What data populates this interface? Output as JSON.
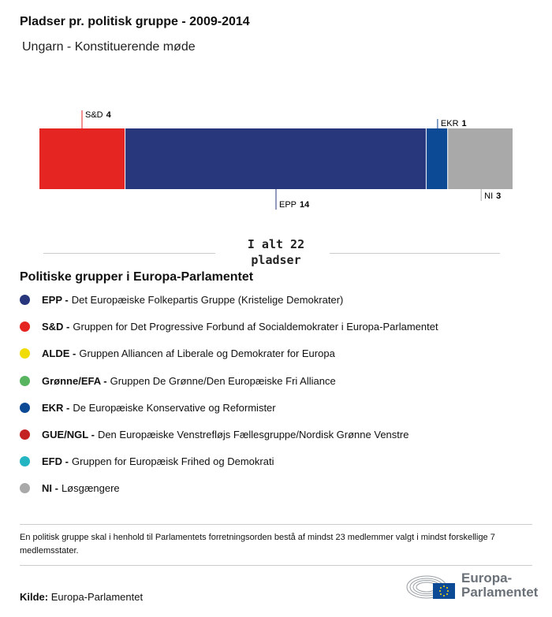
{
  "title": "Pladser pr. politisk gruppe - 2009-2014",
  "subtitle": "Ungarn - Konstituerende møde",
  "chart_data": {
    "type": "bar",
    "stacked": true,
    "orientation": "horizontal",
    "categories": [
      "S&D",
      "EPP",
      "EKR",
      "NI"
    ],
    "values": [
      4,
      14,
      1,
      3
    ],
    "colors": [
      "#e52521",
      "#28367c",
      "#0c4a96",
      "#a9a9a9"
    ],
    "label_pos": [
      "top",
      "bottom",
      "top",
      "bottom"
    ],
    "total": 22,
    "total_label": "I alt 22 pladser"
  },
  "legend": {
    "title": "Politiske grupper i Europa-Parlamentet",
    "items": [
      {
        "abbr": "EPP -",
        "name": "Det Europæiske Folkepartis Gruppe (Kristelige Demokrater)",
        "color": "#28367c"
      },
      {
        "abbr": "S&D -",
        "name": "Gruppen for Det Progressive Forbund af Socialdemokrater i Europa-Parlamentet",
        "color": "#e52521"
      },
      {
        "abbr": "ALDE -",
        "name": "Gruppen Alliancen af Liberale og Demokrater for Europa",
        "color": "#f0dc00"
      },
      {
        "abbr": "Grønne/EFA -",
        "name": "Gruppen De Grønne/Den Europæiske Fri Alliance",
        "color": "#57b45f"
      },
      {
        "abbr": "EKR -",
        "name": "De Europæiske Konservative og Reformister",
        "color": "#0c4a96"
      },
      {
        "abbr": "GUE/NGL -",
        "name": "Den Europæiske Venstrefløjs Fællesgruppe/Nordisk Grønne Venstre",
        "color": "#c42222"
      },
      {
        "abbr": "EFD -",
        "name": "Gruppen for Europæisk Frihed og Demokrati",
        "color": "#24b5c3"
      },
      {
        "abbr": "NI -",
        "name": "Løsgængere",
        "color": "#a9a9a9"
      }
    ]
  },
  "note": "En politisk gruppe skal i henhold til Parlamentets forretningsorden bestå af mindst 23 medlemmer valgt i mindst forskellige 7 medlemsstater.",
  "source": {
    "label": "Kilde:",
    "value": "Europa-Parlamentet"
  },
  "logo": {
    "line1": "Europa-",
    "line2": "Parlamentet"
  }
}
